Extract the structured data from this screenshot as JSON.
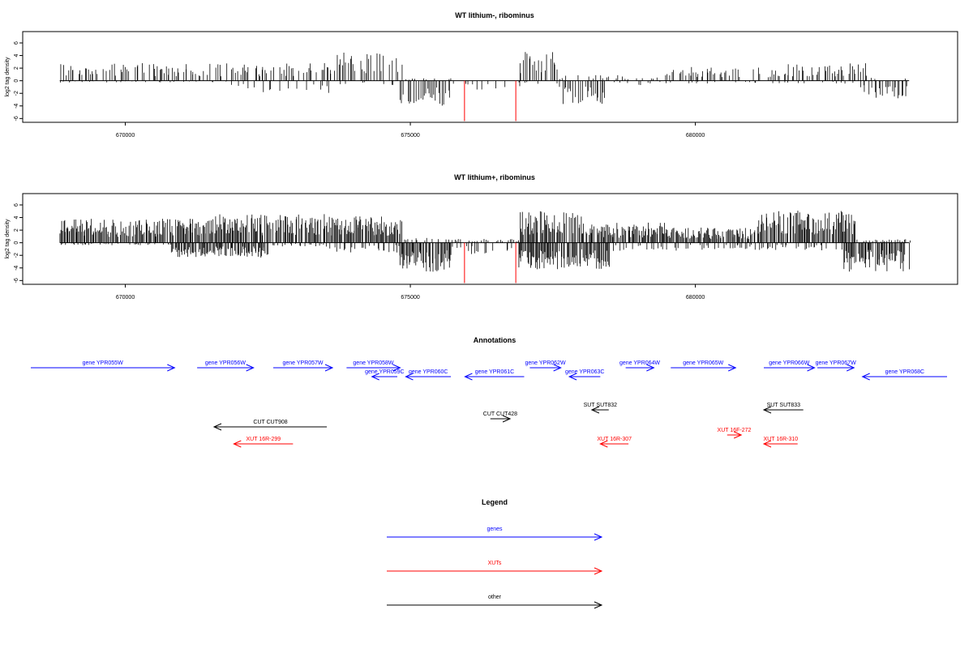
{
  "chart_data": [
    {
      "type": "bar",
      "title": "WT lithium-, ribominus",
      "xlabel": "",
      "ylabel": "log2 tag density",
      "xlim": [
        668200,
        684600
      ],
      "ylim": [
        -6.6,
        7.8
      ],
      "yticks": [
        -6,
        -4,
        -2,
        0,
        2,
        4,
        6
      ],
      "xticks": [
        670000,
        675000,
        680000
      ],
      "xtick_labels": [
        "670000",
        "675000",
        "680000"
      ],
      "grid": false,
      "x_data_range": [
        668850,
        683750
      ],
      "positive_clusters": [
        [
          668850,
          673650,
          2.8
        ],
        [
          673650,
          674850,
          4.6
        ],
        [
          674850,
          675800,
          0.4
        ],
        [
          676900,
          677600,
          4.8
        ],
        [
          677600,
          679500,
          0.9
        ],
        [
          679500,
          681600,
          2.2
        ],
        [
          681600,
          683000,
          2.8
        ],
        [
          683000,
          683750,
          0.5
        ]
      ],
      "negative_clusters": [
        [
          668850,
          671800,
          -0.3
        ],
        [
          671800,
          673600,
          -2.0
        ],
        [
          673600,
          674800,
          -0.7
        ],
        [
          674800,
          675700,
          -4.0
        ],
        [
          675700,
          676900,
          -1.6
        ],
        [
          676900,
          677600,
          -0.5
        ],
        [
          677600,
          678400,
          -3.8
        ],
        [
          678400,
          679400,
          -0.8
        ],
        [
          679400,
          682900,
          -0.5
        ],
        [
          682900,
          683750,
          -2.8
        ]
      ],
      "highlight_bars": [
        {
          "x": 675950,
          "value": -6.4,
          "color": "#ff0000"
        },
        {
          "x": 676850,
          "value": -6.4,
          "color": "#ff0000"
        }
      ],
      "bar_color": "#000000"
    },
    {
      "type": "bar",
      "title": "WT lithium+, ribominus",
      "xlabel": "",
      "ylabel": "log2 tag density",
      "xlim": [
        668200,
        684600
      ],
      "ylim": [
        -6.6,
        7.8
      ],
      "yticks": [
        -6,
        -4,
        -2,
        0,
        2,
        4,
        6
      ],
      "xticks": [
        670000,
        675000,
        680000
      ],
      "xtick_labels": [
        "670000",
        "675000",
        "680000"
      ],
      "grid": false,
      "x_data_range": [
        668850,
        683750
      ],
      "positive_clusters": [
        [
          668850,
          671500,
          3.8
        ],
        [
          671500,
          673500,
          4.6
        ],
        [
          673500,
          674850,
          4.2
        ],
        [
          674850,
          675700,
          0.8
        ],
        [
          675700,
          676900,
          0.6
        ],
        [
          676900,
          678000,
          5.0
        ],
        [
          678000,
          679500,
          3.2
        ],
        [
          679500,
          681000,
          2.4
        ],
        [
          681000,
          682800,
          5.2
        ],
        [
          682800,
          683750,
          0.6
        ]
      ],
      "negative_clusters": [
        [
          668850,
          670800,
          -0.4
        ],
        [
          670800,
          672500,
          -2.4
        ],
        [
          672500,
          673500,
          -0.6
        ],
        [
          673500,
          674800,
          -1.6
        ],
        [
          674800,
          675700,
          -4.6
        ],
        [
          675700,
          676900,
          -2.0
        ],
        [
          676900,
          678500,
          -4.2
        ],
        [
          678500,
          679800,
          -1.4
        ],
        [
          679800,
          682600,
          -1.2
        ],
        [
          682600,
          683750,
          -4.6
        ]
      ],
      "highlight_bars": [
        {
          "x": 675950,
          "value": -6.4,
          "color": "#ff0000"
        },
        {
          "x": 676850,
          "value": -6.4,
          "color": "#ff0000"
        }
      ],
      "bar_color": "#000000"
    }
  ],
  "annotations": {
    "title": "Annotations",
    "features": [
      {
        "label": "gene YPR055W",
        "color": "#0000ff",
        "dir": "right",
        "row": 0,
        "start": 668200,
        "end": 673300
      },
      {
        "label": "gene YPR056W",
        "color": "#0000ff",
        "dir": "right",
        "row": 0,
        "start": 674100,
        "end": 676100
      },
      {
        "label": "gene YPR057W",
        "color": "#0000ff",
        "dir": "right",
        "row": 0,
        "start": 676800,
        "end": 678900
      },
      {
        "label": "gene YPR058W",
        "color": "#0000ff",
        "dir": "right",
        "row": 0,
        "start": 679400,
        "end": 681300
      },
      {
        "label": "gene YPR059C",
        "color": "#0000ff",
        "dir": "left",
        "row": 1,
        "start": 680300,
        "end": 681200
      },
      {
        "label": "gene YPR060C",
        "color": "#0000ff",
        "dir": "left",
        "row": 1,
        "start": 681500,
        "end": 683100
      },
      {
        "label": "gene YPR061C",
        "color": "#0000ff",
        "dir": "left",
        "row": 1,
        "start": 683600,
        "end": 685700
      },
      {
        "label": "gene YPR062W",
        "color": "#0000ff",
        "dir": "right",
        "row": 0,
        "start": 685900,
        "end": 687000
      },
      {
        "label": "gene YPR063C",
        "color": "#0000ff",
        "dir": "left",
        "row": 1,
        "start": 687300,
        "end": 688400
      },
      {
        "label": "gene YPR064W",
        "color": "#0000ff",
        "dir": "right",
        "row": 0,
        "start": 689300,
        "end": 690300
      },
      {
        "label": "gene YPR065W",
        "color": "#0000ff",
        "dir": "right",
        "row": 0,
        "start": 690900,
        "end": 693200
      },
      {
        "label": "gene YPR066W",
        "color": "#0000ff",
        "dir": "right",
        "row": 0,
        "start": 694200,
        "end": 696000
      },
      {
        "label": "gene YPR067W",
        "color": "#0000ff",
        "dir": "right",
        "row": 0,
        "start": 696100,
        "end": 697400
      },
      {
        "label": "gene YPR068C",
        "color": "#0000ff",
        "dir": "left",
        "row": 1,
        "start": 697700,
        "end": 700700
      },
      {
        "label": "CUT CUT908",
        "color": "#000000",
        "dir": "left",
        "row": 3,
        "start": 674700,
        "end": 678700
      },
      {
        "label": "CUT CUT428",
        "color": "#000000",
        "dir": "right",
        "row": 2,
        "start": 684500,
        "end": 685200
      },
      {
        "label": "SUT SUT832",
        "color": "#000000",
        "dir": "left",
        "row": 4,
        "start": 688100,
        "end": 688700
      },
      {
        "label": "SUT SUT833",
        "color": "#000000",
        "dir": "left",
        "row": 4,
        "start": 694200,
        "end": 695600
      },
      {
        "label": "XUT 16R-299",
        "color": "#ff0000",
        "dir": "left",
        "row": 5,
        "start": 675400,
        "end": 677500
      },
      {
        "label": "XUT 16R-307",
        "color": "#ff0000",
        "dir": "left",
        "row": 5,
        "start": 688400,
        "end": 689400
      },
      {
        "label": "XUT 16F-272",
        "color": "#ff0000",
        "dir": "right",
        "row": 6,
        "start": 692900,
        "end": 693400
      },
      {
        "label": "XUT 16R-310",
        "color": "#ff0000",
        "dir": "left",
        "row": 5,
        "start": 694200,
        "end": 695400
      }
    ]
  },
  "legend": {
    "title": "Legend",
    "items": [
      {
        "label": "genes",
        "color": "#0000ff"
      },
      {
        "label": "XUTs",
        "color": "#ff0000"
      },
      {
        "label": "other",
        "color": "#000000"
      }
    ]
  }
}
